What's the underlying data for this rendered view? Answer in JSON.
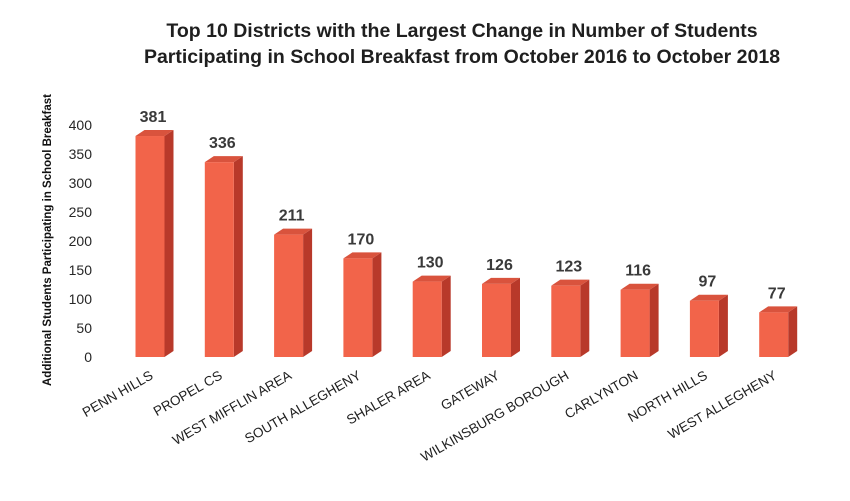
{
  "chart_data": {
    "type": "bar",
    "title": "Top 10 Districts with the Largest Change in Number of Students Participating in School Breakfast from October 2016 to October 2018",
    "title_lines": [
      "Top 10 Districts with the Largest Change in Number of Students",
      "Participating in School Breakfast from October 2016 to October 2018"
    ],
    "xlabel": "",
    "ylabel": "Additional Students Participating in School Breakfast",
    "categories": [
      "PENN HILLS",
      "PROPEL CS",
      "WEST MIFFLIN AREA",
      "SOUTH ALLEGHENY",
      "SHALER AREA",
      "GATEWAY",
      "WILKINSBURG BOROUGH",
      "CARLYNTON",
      "NORTH HILLS",
      "WEST ALLEGHENY"
    ],
    "values": [
      381,
      336,
      211,
      170,
      130,
      126,
      123,
      116,
      97,
      77
    ],
    "data_labels": [
      "381",
      "336",
      "211",
      "170",
      "130",
      "126",
      "123",
      "116",
      "97",
      "77"
    ],
    "ylim": [
      0,
      400
    ],
    "yticks": [
      0,
      50,
      100,
      150,
      200,
      250,
      300,
      350,
      400
    ],
    "grid": false,
    "legend": "none",
    "bar_style": "3d",
    "colors": {
      "bar_front": "#f2644a",
      "bar_side": "#b8392a",
      "bar_top": "#d9533d",
      "text": "#1f1f1f",
      "data_label": "#3a3a3a"
    }
  }
}
